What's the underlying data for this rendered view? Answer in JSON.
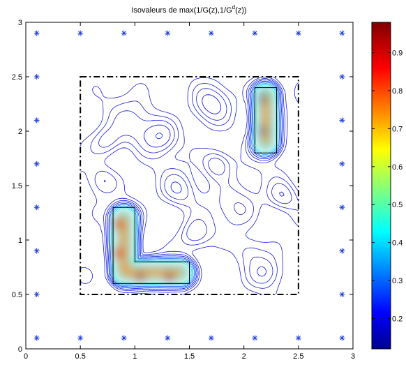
{
  "chart_data": {
    "type": "contour",
    "title": {
      "prefix": "Isovaleurs de max(1/G(z),1/G",
      "sup": "d",
      "suffix": "(z))"
    },
    "xlabel": "",
    "ylabel": "",
    "xlim": [
      0,
      3
    ],
    "ylim": [
      0,
      3
    ],
    "x_ticks": [
      0,
      0.5,
      1,
      1.5,
      2,
      2.5,
      3
    ],
    "x_tick_labels": [
      "0",
      "0.5",
      "1",
      "1.5",
      "2",
      "2.5",
      "3"
    ],
    "y_ticks": [
      0,
      0.5,
      1,
      1.5,
      2,
      2.5,
      3
    ],
    "y_tick_labels": [
      "0",
      "0.5",
      "1",
      "1.5",
      "2",
      "2.5",
      "3"
    ],
    "grid": false,
    "sensor_marker": "*",
    "sensor_color": "#1f3fdc",
    "sensors": [
      [
        0.1,
        2.9
      ],
      [
        0.5,
        2.9
      ],
      [
        0.9,
        2.9
      ],
      [
        1.3,
        2.9
      ],
      [
        1.7,
        2.9
      ],
      [
        2.1,
        2.9
      ],
      [
        2.5,
        2.9
      ],
      [
        2.9,
        2.9
      ],
      [
        0.1,
        0.1
      ],
      [
        0.5,
        0.1
      ],
      [
        0.9,
        0.1
      ],
      [
        1.3,
        0.1
      ],
      [
        1.7,
        0.1
      ],
      [
        2.1,
        0.1
      ],
      [
        2.5,
        0.1
      ],
      [
        2.9,
        0.1
      ],
      [
        0.1,
        2.5
      ],
      [
        0.1,
        2.1
      ],
      [
        0.1,
        1.7
      ],
      [
        0.1,
        1.3
      ],
      [
        0.1,
        0.9
      ],
      [
        0.1,
        0.5
      ],
      [
        2.9,
        2.5
      ],
      [
        2.9,
        2.1
      ],
      [
        2.9,
        1.7
      ],
      [
        2.9,
        1.3
      ],
      [
        2.9,
        0.9
      ],
      [
        2.9,
        0.5
      ]
    ],
    "search_domain": {
      "x": [
        0.5,
        2.5
      ],
      "y": [
        0.5,
        2.5
      ],
      "style": "dash-dot"
    },
    "objects": [
      {
        "shape": "rectangle",
        "x": [
          2.1,
          2.3
        ],
        "y": [
          1.8,
          2.4
        ]
      },
      {
        "shape": "L",
        "points": [
          [
            0.8,
            0.6
          ],
          [
            1.5,
            0.6
          ],
          [
            1.5,
            0.8
          ],
          [
            1.0,
            0.8
          ],
          [
            1.0,
            1.3
          ],
          [
            0.8,
            1.3
          ]
        ]
      }
    ],
    "contour_color": "#1a1ad6",
    "colorbar": {
      "range": [
        0.12,
        0.98
      ],
      "ticks": [
        0.2,
        0.3,
        0.4,
        0.5,
        0.6,
        0.7,
        0.8,
        0.9
      ],
      "tick_labels": [
        "0.2",
        "0.3",
        "0.4",
        "0.5",
        "0.6",
        "0.7",
        "0.8",
        "0.9"
      ],
      "colormap": "jet"
    }
  }
}
